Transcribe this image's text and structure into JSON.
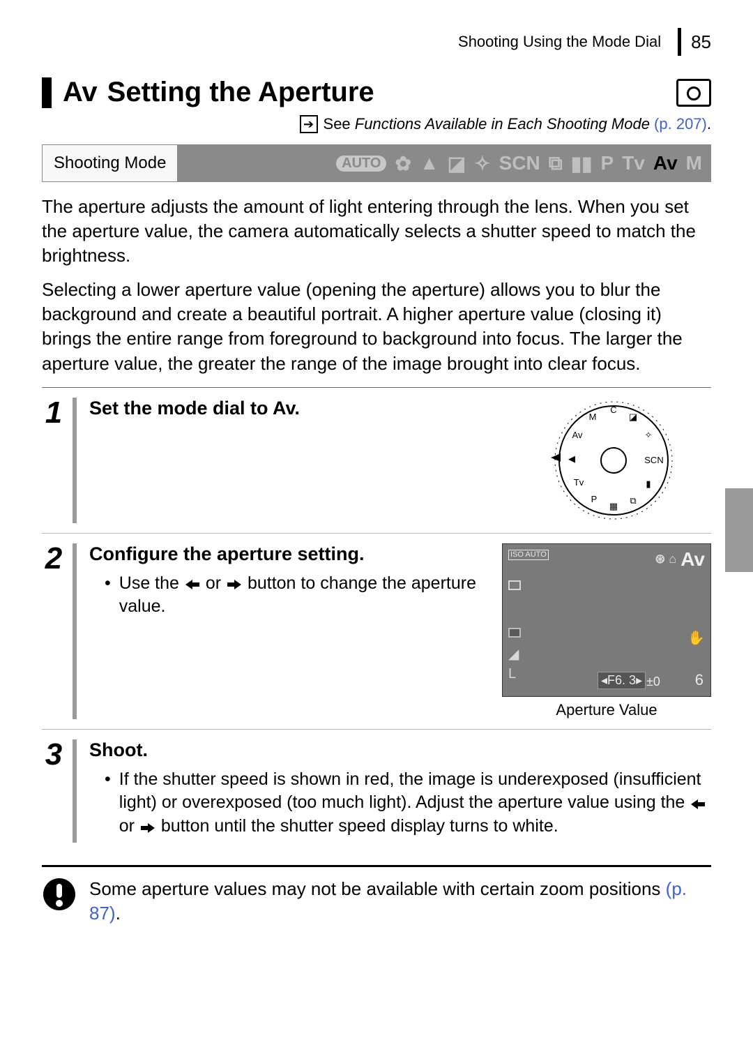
{
  "header": {
    "section": "Shooting Using the Mode Dial",
    "page": "85"
  },
  "title": {
    "mode_symbol": "Av",
    "text": "Setting the Aperture"
  },
  "see_ref": {
    "prefix": "See ",
    "italic": "Functions Available in Each Shooting Mode",
    "link": " (p. 207)",
    "dot": "."
  },
  "shooting_mode": {
    "label": "Shooting Mode",
    "icons": {
      "auto": "AUTO",
      "scn": "SCN",
      "p": "P",
      "tv": "Tv",
      "av": "Av",
      "m": "M"
    }
  },
  "paragraphs": {
    "p1": "The aperture adjusts the amount of light entering through the lens. When you set the aperture value, the camera automatically selects a shutter speed to match the brightness.",
    "p2": "Selecting a lower aperture value (opening the aperture) allows you to blur the background and create a beautiful portrait. A higher aperture value (closing it) brings the entire range from foreground to background into focus. The larger the aperture value, the greater the range of the image brought into clear focus."
  },
  "steps": [
    {
      "num": "1",
      "title_pre": "Set the mode dial to ",
      "title_sym": "Av",
      "title_post": "."
    },
    {
      "num": "2",
      "title": "Configure the aperture setting.",
      "bullet_pre": "Use the ",
      "bullet_mid": " or ",
      "bullet_post": " button to change the aperture value.",
      "lcd": {
        "iso": "ISO\nAUTO",
        "av": "Av",
        "f": "F6. 3",
        "pm": "±0",
        "count": "6"
      },
      "caption": "Aperture Value"
    },
    {
      "num": "3",
      "title": "Shoot.",
      "bullet_pre": "If the shutter speed is shown in red, the image is underexposed (insufficient light) or overexposed (too much light). Adjust the aperture value using the ",
      "bullet_mid": " or ",
      "bullet_post": " button until the shutter speed display turns to white."
    }
  ],
  "note": {
    "text_pre": "Some aperture values may not be available with certain zoom positions ",
    "link": "(p. 87)",
    "dot": "."
  },
  "colors": {
    "link": "#4060d8",
    "grey_bar": "#9a9a9a",
    "mode_strip": "#8a8a8a",
    "lcd_bg": "#7a7a7a"
  }
}
